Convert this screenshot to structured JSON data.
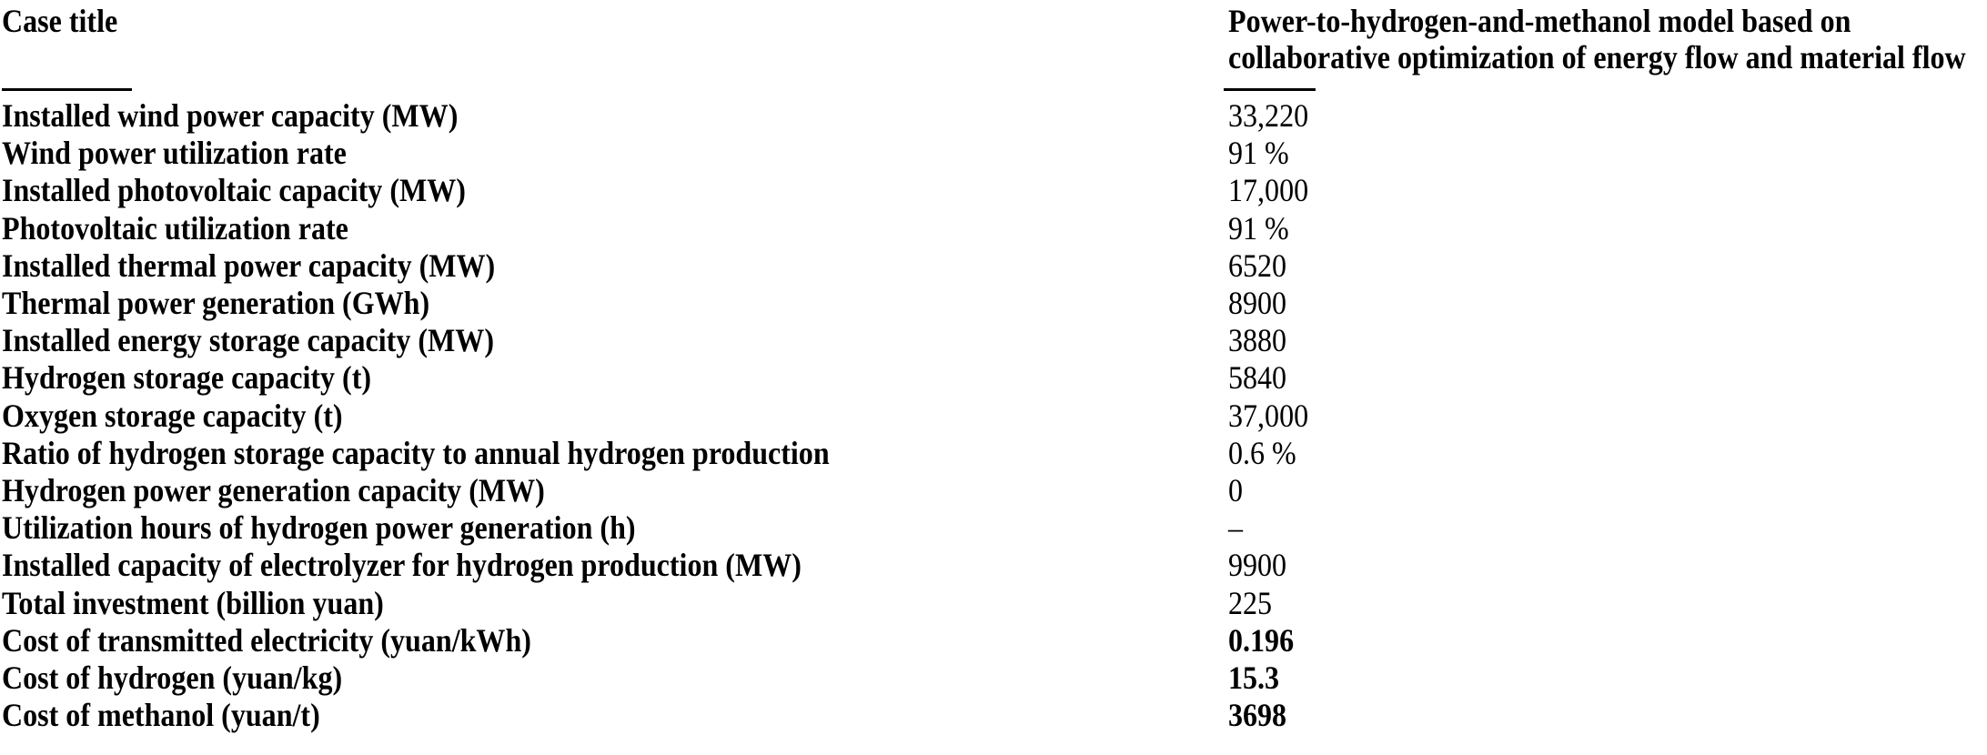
{
  "page": {
    "background_color": "#ffffff",
    "text_color": "#000000",
    "rule_color": "#000000"
  },
  "table": {
    "column_headers": {
      "case_title": "Case title",
      "model_title": "Power-to-hydrogen-and-methanol model based on collaborative optimization of energy flow and material flow",
      "model_title_lines": [
        "Power-to-hydrogen-and-methanol model based on",
        "collaborative optimization of energy flow and material flow"
      ]
    },
    "rows": [
      {
        "label": "Installed wind power capacity (MW)",
        "value": "33,220",
        "bold_value": false
      },
      {
        "label": "Wind power utilization rate",
        "value": "91 %",
        "bold_value": false
      },
      {
        "label": "Installed photovoltaic capacity (MW)",
        "value": "17,000",
        "bold_value": false
      },
      {
        "label": "Photovoltaic utilization rate",
        "value": "91 %",
        "bold_value": false
      },
      {
        "label": "Installed thermal power capacity (MW)",
        "value": "6520",
        "bold_value": false
      },
      {
        "label": "Thermal power generation (GWh)",
        "value": "8900",
        "bold_value": false
      },
      {
        "label": "Installed energy storage capacity (MW)",
        "value": "3880",
        "bold_value": false
      },
      {
        "label": "Hydrogen storage capacity (t)",
        "value": "5840",
        "bold_value": false
      },
      {
        "label": "Oxygen storage capacity (t)",
        "value": "37,000",
        "bold_value": false
      },
      {
        "label": "Ratio of hydrogen storage capacity to annual hydrogen production",
        "value": "0.6 %",
        "bold_value": false
      },
      {
        "label": "Hydrogen power generation capacity (MW)",
        "value": "0",
        "bold_value": false
      },
      {
        "label": "Utilization hours of hydrogen power generation (h)",
        "value": "–",
        "bold_value": false
      },
      {
        "label": "Installed capacity of electrolyzer for hydrogen production (MW)",
        "value": "9900",
        "bold_value": false
      },
      {
        "label": "Total investment (billion yuan)",
        "value": "225",
        "bold_value": false
      },
      {
        "label": "Cost of transmitted electricity (yuan/kWh)",
        "value": "0.196",
        "bold_value": true
      },
      {
        "label": "Cost of hydrogen (yuan/kg)",
        "value": "15.3",
        "bold_value": true
      },
      {
        "label": "Cost of methanol (yuan/t)",
        "value": "3698",
        "bold_value": true
      }
    ]
  }
}
